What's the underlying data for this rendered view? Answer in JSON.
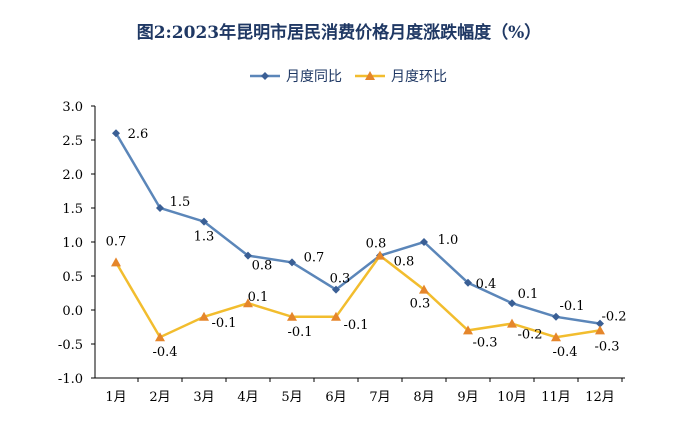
{
  "chart_data": {
    "type": "line",
    "title": "图2:2023年昆明市居民消费价格月度涨跌幅度（%）",
    "categories": [
      "1月",
      "2月",
      "3月",
      "4月",
      "5月",
      "6月",
      "7月",
      "8月",
      "9月",
      "10月",
      "11月",
      "12月"
    ],
    "ylim": [
      -1.0,
      3.0
    ],
    "yticks": [
      "3.0",
      "2.5",
      "2.0",
      "1.5",
      "1.0",
      "0.5",
      "0.0",
      "-0.5",
      "-1.0"
    ],
    "legend_position": "top",
    "grid": false,
    "series": [
      {
        "name": "月度同比",
        "color": "#5b86b9",
        "marker": "diamond",
        "marker_color": "#3a5f95",
        "values": [
          2.6,
          1.5,
          1.3,
          0.8,
          0.7,
          0.3,
          0.8,
          1.0,
          0.4,
          0.1,
          -0.1,
          -0.2
        ],
        "labels": [
          "2.6",
          "1.5",
          "1.3",
          "0.8",
          "0.7",
          "0.3",
          "0.8",
          "1.0",
          "0.4",
          "0.1",
          "-0.1",
          "-0.2"
        ]
      },
      {
        "name": "月度环比",
        "color": "#f2bd2e",
        "marker": "triangle",
        "marker_color": "#e5862b",
        "values": [
          0.7,
          -0.4,
          -0.1,
          0.1,
          -0.1,
          -0.1,
          0.8,
          0.3,
          -0.3,
          -0.2,
          -0.4,
          -0.3
        ],
        "labels": [
          "0.7",
          "-0.4",
          "-0.1",
          "0.1",
          "-0.1",
          "-0.1",
          "0.8",
          "0.3",
          "-0.3",
          "-0.2",
          "-0.4",
          "-0.3"
        ]
      }
    ]
  }
}
